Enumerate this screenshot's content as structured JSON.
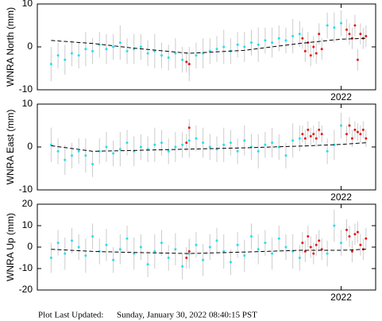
{
  "chart_data": [
    {
      "type": "scatter",
      "ylabel": "WNRA North (mm)",
      "xlim": [
        2019.8,
        2022.25
      ],
      "xticks": [
        2022
      ],
      "ylim": [
        -10,
        10
      ],
      "yticks": [
        -10,
        0,
        10
      ],
      "series": [
        {
          "mark": "errorbar",
          "color": "#22e0f0",
          "x": [
            2019.9,
            2019.95,
            2020,
            2020.05,
            2020.1,
            2020.15,
            2020.2,
            2020.25,
            2020.3,
            2020.35,
            2020.4,
            2020.45,
            2020.5,
            2020.55,
            2020.6,
            2020.65,
            2020.7,
            2020.75,
            2020.8,
            2020.85,
            2020.9,
            2020.95,
            2021,
            2021.05,
            2021.1,
            2021.15,
            2021.2,
            2021.25,
            2021.3,
            2021.35,
            2021.4,
            2021.45,
            2021.5,
            2021.55,
            2021.6,
            2021.65,
            2021.7,
            2021.9,
            2021.95,
            2022
          ],
          "values": [
            -4,
            -2,
            -3,
            -1.5,
            -2,
            -0.5,
            -1,
            0.5,
            -0.5,
            0,
            1,
            -1,
            -0.5,
            0,
            -1.5,
            -1,
            -2,
            -2.5,
            -1.5,
            -3,
            -4,
            -2,
            -1.5,
            -1,
            -0.5,
            0,
            -1,
            0.5,
            0,
            1,
            0.5,
            1.5,
            1,
            2,
            1.5,
            2.5,
            3,
            5,
            4.5,
            5.5
          ],
          "errors": [
            4,
            3,
            3.5,
            3,
            3,
            4,
            3,
            3,
            3.5,
            3,
            4,
            3,
            3.5,
            3,
            3,
            4,
            3,
            3,
            3.5,
            3,
            4,
            3,
            3.5,
            3,
            3,
            4,
            3,
            3,
            3.5,
            3,
            4,
            3,
            3.5,
            3,
            3,
            4,
            3,
            3,
            3.5,
            3
          ]
        },
        {
          "mark": "errorbar",
          "color": "#ee1111",
          "x": [
            2020.88,
            2020.9,
            2021.72,
            2021.74,
            2021.76,
            2021.78,
            2021.8,
            2021.82,
            2021.84,
            2021.86,
            2022.04,
            2022.06,
            2022.08,
            2022.1,
            2022.12,
            2022.14,
            2022.16,
            2022.18
          ],
          "values": [
            -3.5,
            -4,
            2,
            -1,
            1,
            -2,
            0,
            -1.5,
            3,
            -0.5,
            4,
            3,
            2,
            5,
            -3,
            3,
            2,
            2.5
          ],
          "errors": [
            2.5,
            2.5,
            2.5,
            2.5,
            2.5,
            2.5,
            2.5,
            2.5,
            2.5,
            2.5,
            2.5,
            2.5,
            2.5,
            2.5,
            2.5,
            2.5,
            2.5,
            2.5
          ]
        },
        {
          "mark": "dashed-line",
          "color": "#000000",
          "x": [
            2019.9,
            2020.2,
            2020.5,
            2020.9,
            2021.3,
            2021.7,
            2022,
            2022.18
          ],
          "values": [
            1.5,
            0.8,
            -0.3,
            -1.5,
            -0.8,
            0.8,
            1.8,
            2
          ]
        }
      ]
    },
    {
      "type": "scatter",
      "ylabel": "WNRA East (mm)",
      "xlim": [
        2019.8,
        2022.25
      ],
      "xticks": [
        2022
      ],
      "ylim": [
        -10,
        10
      ],
      "yticks": [
        -10,
        0,
        10
      ],
      "series": [
        {
          "mark": "errorbar",
          "color": "#22e0f0",
          "x": [
            2019.9,
            2019.95,
            2020,
            2020.05,
            2020.1,
            2020.15,
            2020.2,
            2020.25,
            2020.3,
            2020.35,
            2020.4,
            2020.45,
            2020.5,
            2020.55,
            2020.6,
            2020.65,
            2020.7,
            2020.75,
            2020.8,
            2020.85,
            2020.9,
            2020.95,
            2021,
            2021.05,
            2021.1,
            2021.15,
            2021.2,
            2021.25,
            2021.3,
            2021.35,
            2021.4,
            2021.45,
            2021.5,
            2021.55,
            2021.6,
            2021.65,
            2021.7,
            2021.9,
            2021.95,
            2022
          ],
          "values": [
            0.5,
            -1,
            -3,
            -2,
            -1,
            -2,
            -4,
            -1,
            0,
            -1.5,
            -0.5,
            1,
            -1,
            0,
            -0.5,
            0.5,
            1,
            -1,
            0,
            0.5,
            1.5,
            2,
            1,
            0,
            -0.5,
            0.5,
            1,
            -1,
            1.5,
            0,
            -1,
            0.5,
            1,
            0,
            -2,
            1.5,
            2,
            -1,
            0.5,
            5
          ],
          "errors": [
            4,
            3,
            3.5,
            3,
            3,
            4,
            3,
            3,
            3.5,
            3,
            4,
            3,
            3.5,
            3,
            3,
            4,
            3,
            3,
            3.5,
            3,
            4,
            3,
            3.5,
            3,
            3,
            4,
            3,
            3,
            3.5,
            3,
            4,
            3,
            3.5,
            3,
            3,
            4,
            3,
            3,
            3.5,
            3
          ]
        },
        {
          "mark": "errorbar",
          "color": "#ee1111",
          "x": [
            2020.88,
            2020.9,
            2021.72,
            2021.74,
            2021.76,
            2021.78,
            2021.8,
            2021.82,
            2021.84,
            2021.86,
            2022.04,
            2022.06,
            2022.08,
            2022.1,
            2022.12,
            2022.14,
            2022.16,
            2022.18
          ],
          "values": [
            1,
            4.5,
            3,
            2,
            4,
            2.5,
            3,
            2,
            4,
            3,
            3,
            5,
            2,
            4,
            3.5,
            3,
            4,
            2
          ],
          "errors": [
            2,
            2,
            2,
            2,
            2,
            2,
            2,
            2,
            2,
            2,
            2,
            2,
            2,
            2,
            2,
            2,
            2,
            2
          ]
        },
        {
          "mark": "dashed-line",
          "color": "#000000",
          "x": [
            2019.9,
            2020.2,
            2020.5,
            2020.9,
            2021.3,
            2021.7,
            2022,
            2022.18
          ],
          "values": [
            0.3,
            -1,
            -0.8,
            -0.5,
            -0.2,
            0.2,
            0.6,
            1
          ]
        }
      ]
    },
    {
      "type": "scatter",
      "ylabel": "WNRA Up (mm)",
      "xlim": [
        2019.8,
        2022.25
      ],
      "xticks": [
        2022
      ],
      "ylim": [
        -20,
        20
      ],
      "yticks": [
        -20,
        -10,
        0,
        10,
        20
      ],
      "series": [
        {
          "mark": "errorbar",
          "color": "#22e0f0",
          "x": [
            2019.9,
            2019.95,
            2020,
            2020.05,
            2020.1,
            2020.15,
            2020.2,
            2020.25,
            2020.3,
            2020.35,
            2020.4,
            2020.45,
            2020.5,
            2020.55,
            2020.6,
            2020.65,
            2020.7,
            2020.75,
            2020.8,
            2020.85,
            2020.9,
            2020.95,
            2021,
            2021.05,
            2021.1,
            2021.15,
            2021.2,
            2021.25,
            2021.3,
            2021.35,
            2021.4,
            2021.45,
            2021.5,
            2021.55,
            2021.6,
            2021.65,
            2021.7,
            2021.9,
            2021.95,
            2022
          ],
          "values": [
            -5,
            2,
            -3,
            3,
            0,
            -4,
            5,
            -2,
            1,
            -6,
            -1,
            4,
            -3,
            0,
            -8,
            -2,
            2,
            -5,
            -1,
            -9,
            -3,
            1,
            -6,
            0,
            3,
            -2,
            -7,
            1,
            -4,
            5,
            -1,
            2,
            -3,
            4,
            0,
            -2,
            -5,
            -3,
            10,
            2
          ],
          "errors": [
            7,
            6,
            7.5,
            6,
            6,
            8,
            6,
            6,
            7.5,
            6,
            7,
            6,
            7.5,
            6,
            6,
            8,
            6,
            6,
            7.5,
            6,
            7,
            6,
            7.5,
            6,
            6,
            8,
            6,
            6,
            7.5,
            6,
            7,
            6,
            7.5,
            6,
            6,
            8,
            6,
            6,
            7.5,
            6
          ]
        },
        {
          "mark": "errorbar",
          "color": "#ee1111",
          "x": [
            2020.88,
            2020.9,
            2021.72,
            2021.74,
            2021.76,
            2021.78,
            2021.8,
            2021.82,
            2021.84,
            2021.86,
            2022.04,
            2022.06,
            2022.08,
            2022.1,
            2022.12,
            2022.14,
            2022.16,
            2022.18
          ],
          "values": [
            -5,
            -2,
            2,
            -2,
            5,
            0,
            -3,
            1,
            3,
            -1,
            8,
            5,
            -2,
            6,
            7,
            1,
            -1,
            4
          ],
          "errors": [
            5,
            5,
            5,
            5,
            5,
            5,
            5,
            5,
            5,
            5,
            5,
            5,
            5,
            5,
            5,
            5,
            5,
            5
          ]
        },
        {
          "mark": "dashed-line",
          "color": "#000000",
          "x": [
            2019.9,
            2020.2,
            2020.5,
            2020.9,
            2021.3,
            2021.7,
            2022,
            2022.18
          ],
          "values": [
            -1,
            -2,
            -2.5,
            -3,
            -2.3,
            -1.5,
            -1.5,
            -1
          ]
        }
      ]
    }
  ],
  "footer": {
    "label": "Plot Last Updated:",
    "text": "Sunday, January 30, 2022 08:40:15 PST"
  }
}
